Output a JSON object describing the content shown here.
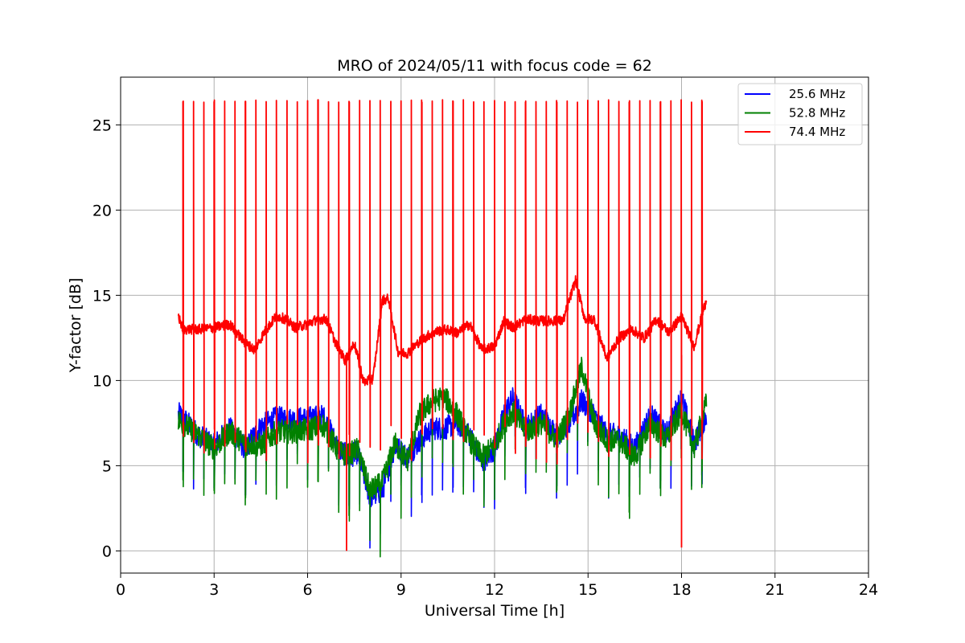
{
  "chart_data": {
    "type": "line",
    "title": "MRO of 2024/05/11 with focus code = 62",
    "xlabel": "Universal Time [h]",
    "ylabel": "Y-factor [dB]",
    "xlim": [
      0,
      24
    ],
    "ylim": [
      -1.3,
      27.8
    ],
    "xticks": [
      0,
      3,
      6,
      9,
      12,
      15,
      18,
      21,
      24
    ],
    "yticks": [
      0,
      5,
      10,
      15,
      20,
      25
    ],
    "grid": true,
    "legend_position": "top-right",
    "x_start": 1.85,
    "x_end": 18.8,
    "series": [
      {
        "name": "25.6 MHz",
        "color": "#0000ff",
        "x": [
          1.9,
          2.5,
          3.0,
          3.5,
          4.0,
          4.5,
          5.0,
          5.5,
          6.0,
          6.5,
          7.0,
          7.3,
          7.6,
          8.0,
          8.4,
          8.8,
          9.2,
          9.6,
          10.0,
          10.4,
          10.8,
          11.2,
          11.6,
          12.0,
          12.3,
          12.6,
          13.0,
          13.5,
          14.0,
          14.4,
          14.8,
          15.2,
          15.6,
          16.0,
          16.5,
          17.0,
          17.5,
          18.0,
          18.4,
          18.8
        ],
        "values": [
          8.0,
          6.8,
          6.2,
          7.2,
          6.0,
          7.3,
          7.8,
          7.7,
          7.8,
          7.9,
          6.0,
          5.5,
          5.8,
          3.2,
          3.5,
          6.2,
          5.5,
          6.5,
          7.2,
          7.2,
          7.5,
          6.8,
          5.2,
          6.0,
          8.0,
          9.0,
          7.2,
          8.0,
          6.8,
          7.5,
          8.8,
          8.0,
          6.8,
          6.8,
          6.0,
          8.0,
          6.8,
          9.0,
          6.3,
          8.0
        ]
      },
      {
        "name": "52.8 MHz",
        "color": "#008000",
        "x": [
          1.9,
          2.5,
          3.0,
          3.5,
          4.0,
          4.5,
          5.0,
          5.5,
          6.0,
          6.5,
          7.0,
          7.3,
          7.6,
          8.0,
          8.4,
          8.8,
          9.2,
          9.6,
          10.0,
          10.4,
          10.8,
          11.2,
          11.6,
          12.0,
          12.3,
          12.6,
          13.0,
          13.5,
          14.0,
          14.4,
          14.8,
          15.2,
          15.6,
          16.0,
          16.5,
          17.0,
          17.5,
          18.0,
          18.4,
          18.8
        ],
        "values": [
          7.6,
          6.8,
          6.0,
          7.0,
          6.3,
          6.2,
          7.0,
          7.0,
          7.1,
          7.4,
          5.8,
          5.6,
          6.0,
          3.5,
          4.0,
          6.3,
          5.3,
          8.0,
          8.8,
          9.0,
          8.0,
          6.5,
          5.5,
          6.2,
          7.5,
          8.2,
          7.0,
          7.5,
          6.5,
          8.0,
          10.8,
          7.5,
          6.5,
          6.5,
          5.5,
          7.5,
          6.5,
          8.2,
          6.0,
          8.7
        ]
      },
      {
        "name": "74.4 MHz",
        "color": "#ff0000",
        "x": [
          1.85,
          2.0,
          2.5,
          3.0,
          3.5,
          4.0,
          4.3,
          4.6,
          5.0,
          5.3,
          5.6,
          6.0,
          6.3,
          6.6,
          6.9,
          7.2,
          7.5,
          7.8,
          8.1,
          8.4,
          8.6,
          8.9,
          9.2,
          9.6,
          10.0,
          10.4,
          10.8,
          11.2,
          11.6,
          12.0,
          12.3,
          12.6,
          13.0,
          13.4,
          13.8,
          14.2,
          14.6,
          14.9,
          15.2,
          15.6,
          16.0,
          16.4,
          16.8,
          17.2,
          17.6,
          18.0,
          18.4,
          18.8
        ],
        "values": [
          13.8,
          13.0,
          13.0,
          13.1,
          13.3,
          12.2,
          11.8,
          12.8,
          13.8,
          13.6,
          13.1,
          13.3,
          13.6,
          13.6,
          12.2,
          11.2,
          12.2,
          9.9,
          10.1,
          14.7,
          14.8,
          11.7,
          11.6,
          12.3,
          12.8,
          13.0,
          12.8,
          13.3,
          11.8,
          12.0,
          13.5,
          13.1,
          13.6,
          13.5,
          13.5,
          13.5,
          15.9,
          13.6,
          13.6,
          11.3,
          12.5,
          13.0,
          12.5,
          13.6,
          12.8,
          13.8,
          12.0,
          14.8
        ]
      }
    ],
    "spike_series": "74.4 MHz",
    "spike_period_h": 0.333,
    "spike_peak_db": 26.4,
    "spike_trough_db": 5.0
  }
}
